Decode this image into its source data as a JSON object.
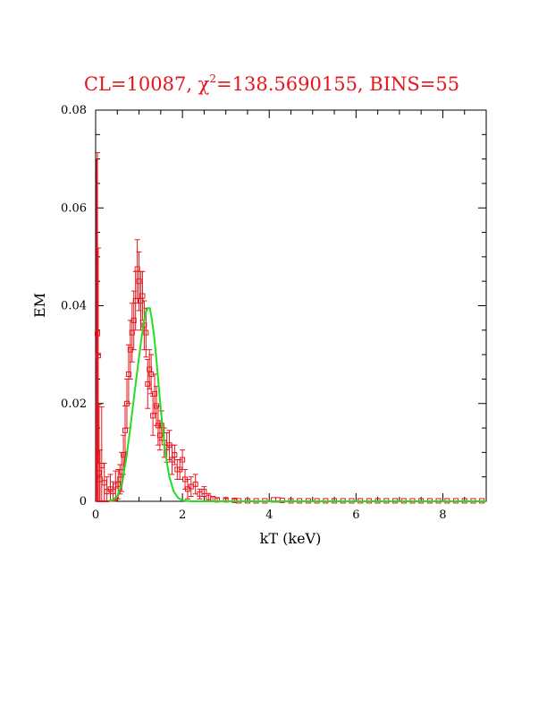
{
  "chart_data": {
    "type": "scatter",
    "title": {
      "prefix": "CL=10087, ",
      "chi": "χ",
      "chi_exp": "2",
      "suffix": "=138.5690155, BINS=55"
    },
    "xlabel": "kT (keV)",
    "ylabel": "EM",
    "xlim": [
      0,
      9
    ],
    "ylim": [
      0,
      0.08
    ],
    "x_ticks": [
      0,
      2,
      4,
      6,
      8
    ],
    "x_tick_labels": [
      "0",
      "2",
      "4",
      "6",
      "8"
    ],
    "y_ticks": [
      0,
      0.02,
      0.04,
      0.06,
      0.08
    ],
    "y_tick_labels": [
      "0",
      "0.02",
      "0.04",
      "0.06",
      "0.08"
    ],
    "grid": false,
    "colors": {
      "data": "#e8141c",
      "model": "#22dd22",
      "title": "#e8141c"
    },
    "series": [
      {
        "type": "errorbar",
        "x": [
          0.04,
          0.06,
          0.08,
          0.1,
          0.14,
          0.2,
          0.26,
          0.34,
          0.4,
          0.46,
          0.52,
          0.56,
          0.6,
          0.64,
          0.68,
          0.72,
          0.76,
          0.8,
          0.84,
          0.88,
          0.92,
          0.96,
          1.0,
          1.04,
          1.08,
          1.12,
          1.16,
          1.2,
          1.24,
          1.28,
          1.32,
          1.36,
          1.4,
          1.44,
          1.48,
          1.52,
          1.58,
          1.64,
          1.7,
          1.76,
          1.82,
          1.88,
          1.94,
          2.0,
          2.06,
          2.12,
          2.2,
          2.3,
          2.4,
          2.5,
          2.6,
          2.7,
          2.8,
          3.0,
          3.2
        ],
        "y": [
          0.0343,
          0.0298,
          0.0058,
          0.0045,
          0.0073,
          0.0038,
          0.002,
          0.0025,
          0.002,
          0.0032,
          0.0035,
          0.0045,
          0.006,
          0.0095,
          0.0145,
          0.02,
          0.026,
          0.031,
          0.0345,
          0.037,
          0.041,
          0.0475,
          0.045,
          0.041,
          0.042,
          0.036,
          0.0345,
          0.024,
          0.027,
          0.026,
          0.0175,
          0.022,
          0.0195,
          0.0155,
          0.0135,
          0.0155,
          0.012,
          0.011,
          0.0115,
          0.0085,
          0.0095,
          0.0065,
          0.0065,
          0.0085,
          0.0045,
          0.0025,
          0.003,
          0.0035,
          0.0015,
          0.002,
          0.0008,
          0.0005,
          0.0003,
          0.0003,
          0.0002
        ],
        "yerr": [
          0.037,
          0.022,
          0.014,
          0.006,
          0.012,
          0.004,
          0.003,
          0.003,
          0.002,
          0.003,
          0.003,
          0.003,
          0.004,
          0.004,
          0.005,
          0.005,
          0.006,
          0.006,
          0.006,
          0.006,
          0.006,
          0.006,
          0.006,
          0.006,
          0.005,
          0.005,
          0.005,
          0.005,
          0.004,
          0.004,
          0.004,
          0.004,
          0.004,
          0.004,
          0.003,
          0.003,
          0.003,
          0.003,
          0.003,
          0.003,
          0.002,
          0.002,
          0.002,
          0.002,
          0.002,
          0.002,
          0.002,
          0.002,
          0.001,
          0.001,
          0.0008,
          0.0005,
          0.0004,
          0.0003,
          0.0003
        ]
      },
      {
        "type": "scatter",
        "x": [
          3.3,
          3.5,
          3.7,
          3.9,
          4.1,
          4.2,
          4.3,
          4.5,
          4.7,
          4.9,
          5.1,
          5.3,
          5.5,
          5.7,
          5.9,
          6.1,
          6.3,
          6.5,
          6.7,
          6.9,
          7.1,
          7.3,
          7.5,
          7.7,
          7.9,
          8.1,
          8.3,
          8.5,
          8.7,
          8.9
        ],
        "y": [
          0.0001,
          0.0001,
          0.0001,
          0.0001,
          0.0003,
          0.0003,
          0.0002,
          0.0001,
          0.0001,
          0.0001,
          0.0001,
          0.0001,
          0.0001,
          0.0001,
          0.0001,
          0.0001,
          0.0001,
          0.0001,
          0.0001,
          0.0001,
          0.0001,
          0.0001,
          0.0001,
          0.0001,
          0.0001,
          0.0001,
          0.0001,
          0.0001,
          0.0001,
          0.0001
        ]
      },
      {
        "type": "line",
        "color": "#e8141c",
        "x": [
          0.02,
          0.03,
          0.04,
          0.06,
          0.08,
          0.1,
          0.3,
          0.4,
          0.5,
          0.55,
          0.6,
          0.62,
          0.65,
          0.68,
          0.7
        ],
        "y": [
          0,
          0.07,
          0.0,
          0.0,
          0.0,
          0.0,
          0.0,
          0.0003,
          0.001,
          0.0018,
          0.0032,
          0.0042,
          0.006,
          0.0085,
          0.0102
        ]
      },
      {
        "type": "line",
        "color": "#22dd22",
        "x": [
          0.3,
          0.4,
          0.5,
          0.6,
          0.7,
          0.8,
          0.9,
          1.0,
          1.05,
          1.1,
          1.15,
          1.2,
          1.25,
          1.3,
          1.35,
          1.4,
          1.45,
          1.5,
          1.55,
          1.6,
          1.65,
          1.7,
          1.8,
          1.9,
          2.0,
          2.1,
          2.2,
          2.5,
          3.0,
          9.0
        ],
        "y": [
          0.0001,
          0.0003,
          0.001,
          0.0035,
          0.0085,
          0.015,
          0.0225,
          0.0295,
          0.033,
          0.036,
          0.0385,
          0.0395,
          0.0395,
          0.037,
          0.0335,
          0.029,
          0.024,
          0.019,
          0.0145,
          0.0105,
          0.0075,
          0.005,
          0.002,
          0.0007,
          0.0002,
          0.0001,
          0.0,
          0.0,
          0.0,
          0.0
        ]
      }
    ]
  }
}
